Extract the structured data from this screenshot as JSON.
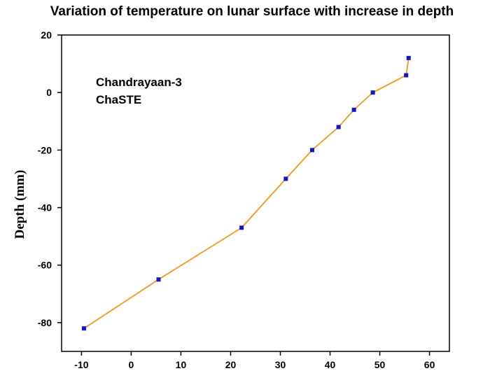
{
  "chart_data": {
    "type": "line",
    "title": "Variation of temperature on lunar surface with increase in depth",
    "xlabel": "",
    "ylabel": "Depth (mm)",
    "xlim": [
      -14,
      64
    ],
    "ylim": [
      -90,
      20
    ],
    "xticks": [
      -10,
      0,
      10,
      20,
      30,
      40,
      50,
      60
    ],
    "yticks": [
      20,
      0,
      -20,
      -40,
      -60,
      -80
    ],
    "grid": false,
    "annotations": [
      "Chandrayaan-3",
      "ChaSTE"
    ],
    "series": [
      {
        "x": [
          -9.5,
          5.5,
          22.2,
          31.1,
          36.4,
          41.7,
          44.8,
          48.6,
          55.3,
          55.8
        ],
        "y": [
          -82,
          -65,
          -47,
          -30,
          -20,
          -12,
          -6,
          0,
          6,
          12
        ]
      }
    ],
    "colors": {
      "line": "#f0a030",
      "marker": "#1414c8"
    }
  }
}
